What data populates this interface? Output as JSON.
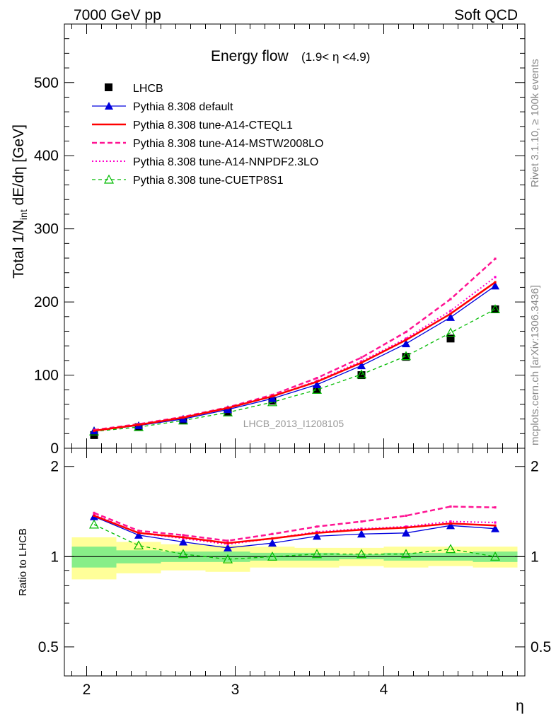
{
  "header": {
    "left": "7000 GeV pp",
    "right": "Soft QCD"
  },
  "side_labels": {
    "rivet": "Rivet 3.1.10, ≥ 100k events",
    "mcplots": "mcplots.cern.ch [arXiv:1306.3436]"
  },
  "main_title": "Energy flow",
  "main_title_range": "(1.9< η <4.9)",
  "watermark": "LHCB_2013_I1208105",
  "y_label_main": "Total 1/N_int dE/dη [GeV]",
  "y_label_ratio": "Ratio to LHCB",
  "x_label": "η",
  "colors": {
    "data": "#000000",
    "default": "#0000dd",
    "cteql1": "#ff0000",
    "mstw": "#ff1493",
    "nnpdf": "#ff00cc",
    "cuetp8s1": "#00bb00",
    "band_inner": "#88ee88",
    "band_outer": "#ffff99"
  },
  "chart_data": [
    {
      "type": "line",
      "panel": "main",
      "x": [
        2.05,
        2.35,
        2.65,
        2.95,
        3.25,
        3.55,
        3.85,
        4.15,
        4.45,
        4.75
      ],
      "xlim": [
        1.85,
        4.95
      ],
      "ylim": [
        0,
        580
      ],
      "yticks": [
        0,
        100,
        200,
        300,
        400,
        500
      ],
      "ytick_labels": [
        "0",
        "100",
        "200",
        "300",
        "400",
        "500"
      ],
      "xticks": [
        2,
        3,
        4
      ],
      "xtick_labels": [
        "2",
        "3",
        "4"
      ],
      "series": [
        {
          "key": "data",
          "name": "LHCB",
          "style": "square",
          "values": [
            18,
            29,
            38,
            50,
            65,
            80,
            100,
            125,
            150,
            190
          ]
        },
        {
          "key": "default",
          "name": "Pythia 8.308 default",
          "style": "line-tri",
          "values": [
            24,
            31,
            40,
            53,
            68,
            87,
            113,
            143,
            179,
            222
          ]
        },
        {
          "key": "cteql1",
          "name": "Pythia 8.308 tune-A14-CTEQL1",
          "style": "solid-thick",
          "values": [
            24,
            32,
            42,
            55,
            71,
            91,
            117,
            148,
            184,
            227
          ]
        },
        {
          "key": "mstw",
          "name": "Pythia 8.308 tune-A14-MSTW2008LO",
          "style": "dashed",
          "values": [
            25,
            33,
            43,
            56,
            73,
            96,
            124,
            159,
            204,
            259
          ]
        },
        {
          "key": "nnpdf",
          "name": "Pythia 8.308 tune-A14-NNPDF2.3LO",
          "style": "dotted",
          "values": [
            24,
            32,
            42,
            55,
            71,
            92,
            119,
            150,
            188,
            234
          ]
        },
        {
          "key": "cuetp8s1",
          "name": "Pythia 8.308 tune-CUETP8S1",
          "style": "dashed-opentri",
          "values": [
            23,
            29,
            38,
            49,
            63,
            80,
            101,
            126,
            158,
            190
          ]
        }
      ]
    },
    {
      "type": "line",
      "panel": "ratio",
      "x": [
        2.05,
        2.35,
        2.65,
        2.95,
        3.25,
        3.55,
        3.85,
        4.15,
        4.45,
        4.75
      ],
      "xlim": [
        1.85,
        4.95
      ],
      "ylim": [
        0.4,
        2.3
      ],
      "log_scale": true,
      "yticks": [
        0.5,
        1,
        2
      ],
      "ytick_labels": [
        "0.5",
        "1",
        "2"
      ],
      "xticks": [
        2,
        3,
        4
      ],
      "xtick_labels": [
        "2",
        "3",
        "4"
      ],
      "bands": {
        "inner_low": [
          0.92,
          0.95,
          0.96,
          0.96,
          0.97,
          0.97,
          0.98,
          0.97,
          0.97,
          0.96
        ],
        "inner_high": [
          1.08,
          1.05,
          1.04,
          1.04,
          1.03,
          1.03,
          1.02,
          1.03,
          1.03,
          1.04
        ],
        "outer_low": [
          0.84,
          0.88,
          0.9,
          0.89,
          0.92,
          0.92,
          0.93,
          0.92,
          0.93,
          0.92
        ],
        "outer_high": [
          1.16,
          1.12,
          1.1,
          1.09,
          1.08,
          1.07,
          1.07,
          1.08,
          1.08,
          1.08
        ]
      },
      "series": [
        {
          "key": "default",
          "values": [
            1.36,
            1.18,
            1.12,
            1.07,
            1.11,
            1.17,
            1.19,
            1.2,
            1.27,
            1.24
          ]
        },
        {
          "key": "cteql1",
          "values": [
            1.37,
            1.2,
            1.16,
            1.11,
            1.15,
            1.2,
            1.23,
            1.25,
            1.29,
            1.27
          ]
        },
        {
          "key": "mstw",
          "values": [
            1.4,
            1.22,
            1.18,
            1.13,
            1.19,
            1.26,
            1.31,
            1.37,
            1.47,
            1.46
          ]
        },
        {
          "key": "nnpdf",
          "values": [
            1.38,
            1.2,
            1.15,
            1.1,
            1.15,
            1.21,
            1.24,
            1.26,
            1.31,
            1.3
          ]
        },
        {
          "key": "cuetp8s1",
          "values": [
            1.28,
            1.09,
            1.02,
            0.98,
            1.0,
            1.02,
            1.02,
            1.02,
            1.06,
            1.0
          ]
        }
      ]
    }
  ]
}
